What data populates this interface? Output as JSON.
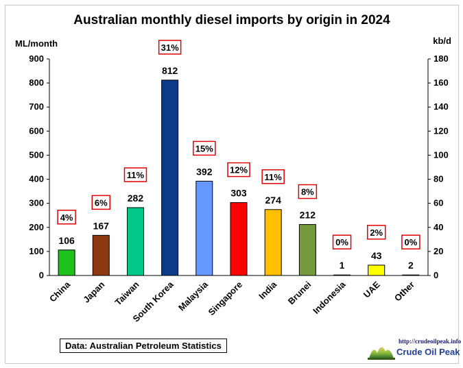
{
  "chart_data": {
    "type": "bar",
    "title": "Australian monthly diesel imports by origin in 2024",
    "ylabel": "ML/month",
    "y2label": "kb/d",
    "ylim": [
      0,
      900
    ],
    "yticks": [
      0,
      100,
      200,
      300,
      400,
      500,
      600,
      700,
      800,
      900
    ],
    "y2lim": [
      0,
      180
    ],
    "y2ticks": [
      0,
      20,
      40,
      60,
      80,
      100,
      120,
      140,
      160,
      180
    ],
    "grid": false,
    "categories": [
      "China",
      "Japan",
      "Taiwan",
      "South Korea",
      "Malaysia",
      "Singapore",
      "India",
      "Brunei",
      "Indonesia",
      "UAE",
      "Other"
    ],
    "values": [
      106,
      167,
      282,
      812,
      392,
      303,
      274,
      212,
      1,
      43,
      2
    ],
    "value_labels": [
      "106",
      "167",
      "282",
      "812",
      "392",
      "303",
      "274",
      "212",
      "1",
      "43",
      "2"
    ],
    "shares": [
      "4%",
      "6%",
      "11%",
      "31%",
      "15%",
      "12%",
      "11%",
      "8%",
      "0%",
      "2%",
      "0%"
    ],
    "share_shown": [
      true,
      true,
      true,
      true,
      true,
      true,
      true,
      true,
      true,
      true,
      true
    ],
    "colors": [
      "#1fc11f",
      "#8b3a12",
      "#00c98b",
      "#0b3a8a",
      "#6699ff",
      "#ff0000",
      "#ffc000",
      "#76993d",
      "#333333",
      "#ffff00",
      "#7f7f7f"
    ]
  },
  "footer": {
    "source": "Data: Australian Petroleum Statistics",
    "logo_url": "http://crudeoilpeak.info",
    "logo_name": "Crude Oil Peak"
  }
}
